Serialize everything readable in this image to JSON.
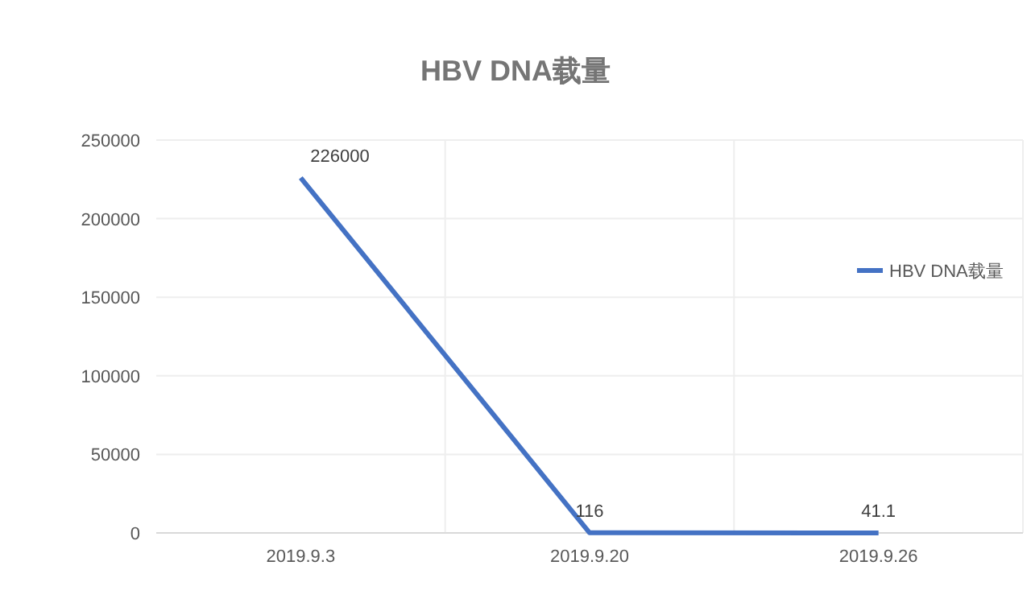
{
  "chart_data": {
    "type": "line",
    "title": "HBV DNA载量",
    "categories": [
      "2019.9.3",
      "2019.9.20",
      "2019.9.26"
    ],
    "series": [
      {
        "name": "HBV DNA载量",
        "color": "#4472c4",
        "values": [
          226000,
          116,
          41.1
        ]
      }
    ],
    "ylim": [
      0,
      250000
    ],
    "yticks": [
      0,
      50000,
      100000,
      150000,
      200000,
      250000
    ],
    "grid": true,
    "legend": "right",
    "data_labels": true,
    "marker": "none",
    "line_style": "solid"
  }
}
